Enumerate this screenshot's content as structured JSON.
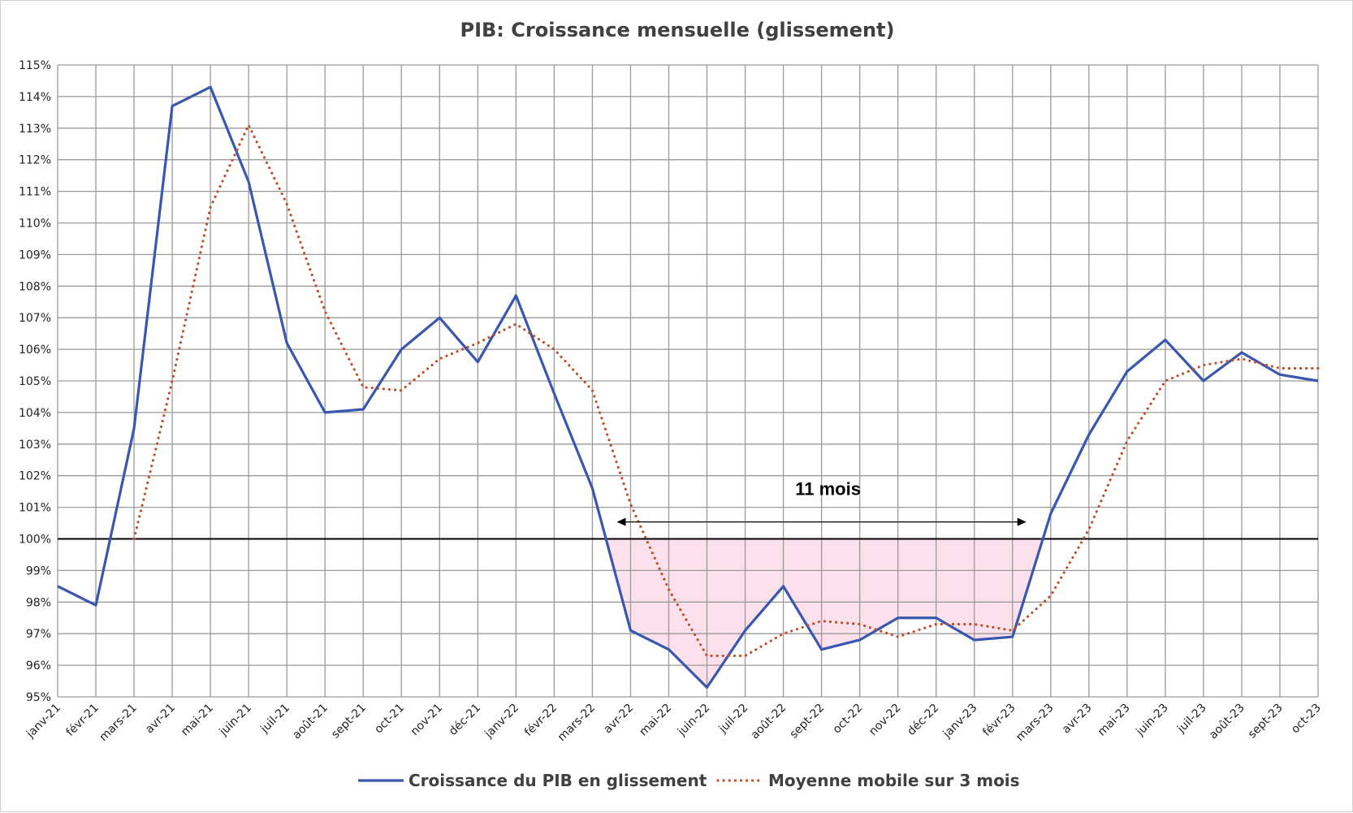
{
  "chart_data": {
    "type": "line",
    "title": "PIB: Croissance mensuelle (glissement)",
    "categories": [
      "janv-21",
      "févr-21",
      "mars-21",
      "avr-21",
      "mai-21",
      "juin-21",
      "juil-21",
      "août-21",
      "sept-21",
      "oct-21",
      "nov-21",
      "déc-21",
      "janv-22",
      "févr-22",
      "mars-22",
      "avr-22",
      "mai-22",
      "juin-22",
      "juil-22",
      "août-22",
      "sept-22",
      "oct-22",
      "nov-22",
      "déc-22",
      "janv-23",
      "févr-23",
      "mars-23",
      "avr-23",
      "mai-23",
      "juin-23",
      "juil-23",
      "août-23",
      "sept-23",
      "oct-23"
    ],
    "y_tick_labels": [
      "95%",
      "96%",
      "97%",
      "98%",
      "99%",
      "100%",
      "101%",
      "102%",
      "103%",
      "104%",
      "105%",
      "106%",
      "107%",
      "108%",
      "109%",
      "110%",
      "111%",
      "112%",
      "113%",
      "114%",
      "115%"
    ],
    "ylim": [
      95,
      115
    ],
    "ystep": 1,
    "reference_line": 100,
    "grid": true,
    "legend_position": "bottom",
    "series": [
      {
        "name": "Croissance du PIB en glissement",
        "color": "#3a57b0",
        "style": "solid",
        "values": [
          98.5,
          97.9,
          103.5,
          113.7,
          114.3,
          111.3,
          106.2,
          104.0,
          104.1,
          106.0,
          107.0,
          105.6,
          107.7,
          104.6,
          101.6,
          97.1,
          96.5,
          95.3,
          97.1,
          98.5,
          96.5,
          96.8,
          97.5,
          97.5,
          96.8,
          96.9,
          100.8,
          103.3,
          105.3,
          106.3,
          105.0,
          105.9,
          105.2,
          105.0
        ]
      },
      {
        "name": "Moyenne mobile sur 3 mois",
        "color": "#c0502a",
        "style": "dotted",
        "values": [
          null,
          null,
          100.0,
          105.0,
          110.5,
          113.1,
          110.6,
          107.2,
          104.8,
          104.7,
          105.7,
          106.2,
          106.8,
          106.0,
          104.7,
          101.1,
          98.4,
          96.3,
          96.3,
          97.0,
          97.4,
          97.3,
          96.9,
          97.3,
          97.3,
          97.1,
          98.2,
          100.3,
          103.1,
          105.0,
          105.5,
          105.7,
          105.4,
          105.4
        ]
      }
    ],
    "annotation": {
      "text": "11 mois",
      "arrow_from": "avr-22",
      "arrow_to": "févr-23",
      "shaded_color": "#fce0ec"
    }
  }
}
